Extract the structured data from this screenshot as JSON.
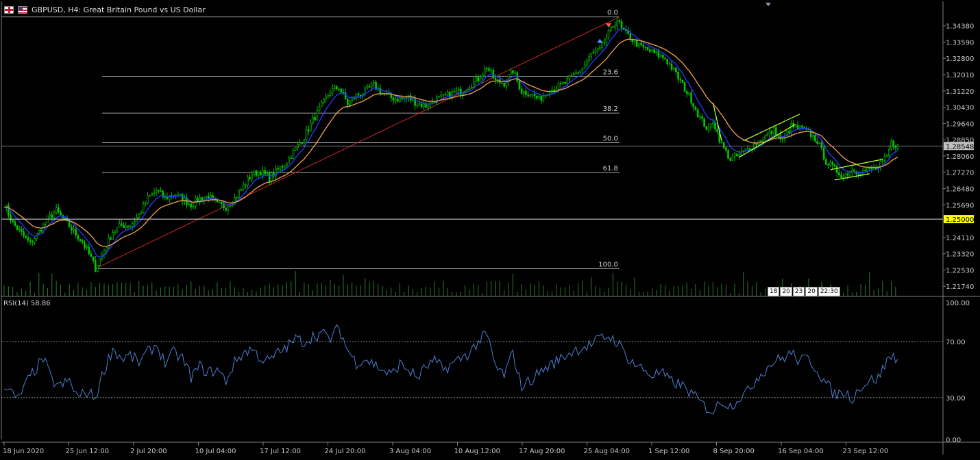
{
  "header": {
    "symbol": "GBPUSD",
    "timeframe": "H4",
    "description": "Great Britain Pound vs US Dollar",
    "title_text": "GBPUSD, H4:  Great Britain Pound vs US Dollar"
  },
  "colors": {
    "background": "#000000",
    "bull_candle": "#00c800",
    "bear_candle": "#00c800",
    "ma_fast": "#1e3cff",
    "ma_slow": "#e69a50",
    "fib_line": "#c0c0c0",
    "trend_line": "#c82828",
    "channel_line": "#adff2f",
    "rsi_line": "#4f7fd0",
    "volume": "#2e7d32",
    "price_highlight_bg": "#ffff00",
    "current_price_bg": "#c0c0c0"
  },
  "icons": {
    "gb_flag": "gb-flag-icon",
    "us_flag": "us-flag-icon",
    "sell_arrow": "sell-arrow-icon",
    "buy_arrow": "buy-arrow-icon"
  },
  "chart_data": {
    "type": "candlestick",
    "symbol": "GBPUSD",
    "timeframe": "H4",
    "price_axis_ticks": [
      "1.34380",
      "1.33590",
      "1.32800",
      "1.32010",
      "1.31220",
      "1.30430",
      "1.29640",
      "1.28850",
      "1.28060",
      "1.27270",
      "1.26480",
      "1.25690",
      "1.24110",
      "1.23320",
      "1.22530",
      "1.21740"
    ],
    "price_ylim": [
      1.2125,
      1.351
    ],
    "current_price": 1.28548,
    "current_price_label": "1.28548",
    "horizontal_level": 1.25,
    "horizontal_level_label": "1.25000",
    "time_ticks": [
      "18 Jun 2020",
      "25 Jun 12:00",
      "2 Jul 20:00",
      "10 Jul 04:00",
      "17 Jul 12:00",
      "24 Jul 20:00",
      "3 Aug 04:00",
      "10 Aug 12:00",
      "17 Aug 20:00",
      "25 Aug 04:00",
      "1 Sep 12:00",
      "8 Sep 20:00",
      "16 Sep 04:00",
      "23 Sep 12:00"
    ],
    "fibonacci": {
      "low": 1.226,
      "high": 1.3481,
      "levels": [
        {
          "label": "0.0",
          "ratio": 0.0
        },
        {
          "label": "23.6",
          "ratio": 0.236
        },
        {
          "label": "38.2",
          "ratio": 0.382
        },
        {
          "label": "50.0",
          "ratio": 0.5
        },
        {
          "label": "61.8",
          "ratio": 0.618
        },
        {
          "label": "100.0",
          "ratio": 1.0
        }
      ]
    },
    "price_path": [
      [
        0,
        1.2575
      ],
      [
        4,
        1.248
      ],
      [
        8,
        1.243
      ],
      [
        12,
        1.238
      ],
      [
        16,
        1.244
      ],
      [
        20,
        1.25
      ],
      [
        24,
        1.254
      ],
      [
        28,
        1.249
      ],
      [
        32,
        1.244
      ],
      [
        36,
        1.239
      ],
      [
        40,
        1.231
      ],
      [
        42,
        1.2262
      ],
      [
        46,
        1.235
      ],
      [
        50,
        1.244
      ],
      [
        54,
        1.247
      ],
      [
        58,
        1.247
      ],
      [
        62,
        1.252
      ],
      [
        66,
        1.26
      ],
      [
        70,
        1.264
      ],
      [
        74,
        1.26
      ],
      [
        78,
        1.262
      ],
      [
        82,
        1.26
      ],
      [
        86,
        1.257
      ],
      [
        90,
        1.26
      ],
      [
        94,
        1.261
      ],
      [
        98,
        1.257
      ],
      [
        102,
        1.256
      ],
      [
        106,
        1.26
      ],
      [
        110,
        1.266
      ],
      [
        114,
        1.272
      ],
      [
        118,
        1.273
      ],
      [
        122,
        1.27
      ],
      [
        126,
        1.274
      ],
      [
        130,
        1.278
      ],
      [
        134,
        1.284
      ],
      [
        138,
        1.29
      ],
      [
        142,
        1.298
      ],
      [
        146,
        1.305
      ],
      [
        150,
        1.312
      ],
      [
        154,
        1.314
      ],
      [
        158,
        1.306
      ],
      [
        162,
        1.31
      ],
      [
        166,
        1.312
      ],
      [
        170,
        1.315
      ],
      [
        174,
        1.311
      ],
      [
        178,
        1.309
      ],
      [
        182,
        1.308
      ],
      [
        186,
        1.309
      ],
      [
        190,
        1.306
      ],
      [
        194,
        1.305
      ],
      [
        198,
        1.308
      ],
      [
        202,
        1.309
      ],
      [
        206,
        1.311
      ],
      [
        210,
        1.312
      ],
      [
        214,
        1.315
      ],
      [
        218,
        1.318
      ],
      [
        222,
        1.324
      ],
      [
        226,
        1.317
      ],
      [
        230,
        1.316
      ],
      [
        234,
        1.322
      ],
      [
        238,
        1.312
      ],
      [
        242,
        1.311
      ],
      [
        246,
        1.308
      ],
      [
        250,
        1.312
      ],
      [
        254,
        1.314
      ],
      [
        258,
        1.316
      ],
      [
        262,
        1.32
      ],
      [
        266,
        1.323
      ],
      [
        270,
        1.33
      ],
      [
        274,
        1.332
      ],
      [
        278,
        1.34
      ],
      [
        282,
        1.347
      ],
      [
        284,
        1.342
      ],
      [
        288,
        1.338
      ],
      [
        292,
        1.334
      ],
      [
        296,
        1.332
      ],
      [
        300,
        1.33
      ],
      [
        304,
        1.328
      ],
      [
        308,
        1.322
      ],
      [
        312,
        1.315
      ],
      [
        316,
        1.308
      ],
      [
        320,
        1.299
      ],
      [
        324,
        1.293
      ],
      [
        326,
        1.298
      ],
      [
        330,
        1.286
      ],
      [
        334,
        1.279
      ],
      [
        338,
        1.281
      ],
      [
        342,
        1.284
      ],
      [
        346,
        1.287
      ],
      [
        350,
        1.29
      ],
      [
        354,
        1.293
      ],
      [
        358,
        1.288
      ],
      [
        362,
        1.295
      ],
      [
        366,
        1.294
      ],
      [
        370,
        1.292
      ],
      [
        374,
        1.288
      ],
      [
        378,
        1.278
      ],
      [
        382,
        1.274
      ],
      [
        386,
        1.271
      ],
      [
        390,
        1.274
      ],
      [
        394,
        1.273
      ],
      [
        398,
        1.274
      ],
      [
        402,
        1.275
      ],
      [
        406,
        1.28
      ],
      [
        408,
        1.287
      ],
      [
        411,
        1.2855
      ]
    ],
    "rsi": {
      "label": "RSI(14) 58.86",
      "period": 14,
      "value": 58.86,
      "axis_ticks": [
        "100.00",
        "70.00",
        "30.00",
        "0.00"
      ],
      "ylim": [
        0,
        100
      ],
      "levels": [
        70,
        30
      ],
      "series": [
        [
          0,
          40
        ],
        [
          6,
          28
        ],
        [
          12,
          45
        ],
        [
          18,
          58
        ],
        [
          22,
          42
        ],
        [
          26,
          38
        ],
        [
          30,
          42
        ],
        [
          34,
          30
        ],
        [
          38,
          34
        ],
        [
          42,
          30
        ],
        [
          46,
          50
        ],
        [
          50,
          65
        ],
        [
          54,
          58
        ],
        [
          58,
          60
        ],
        [
          62,
          55
        ],
        [
          66,
          62
        ],
        [
          70,
          68
        ],
        [
          74,
          55
        ],
        [
          78,
          62
        ],
        [
          82,
          58
        ],
        [
          86,
          45
        ],
        [
          90,
          52
        ],
        [
          94,
          48
        ],
        [
          98,
          50
        ],
        [
          102,
          42
        ],
        [
          106,
          55
        ],
        [
          110,
          62
        ],
        [
          114,
          65
        ],
        [
          118,
          58
        ],
        [
          122,
          56
        ],
        [
          126,
          62
        ],
        [
          130,
          66
        ],
        [
          134,
          72
        ],
        [
          138,
          70
        ],
        [
          142,
          74
        ],
        [
          146,
          76
        ],
        [
          150,
          72
        ],
        [
          154,
          80
        ],
        [
          158,
          64
        ],
        [
          162,
          55
        ],
        [
          166,
          58
        ],
        [
          170,
          54
        ],
        [
          174,
          50
        ],
        [
          178,
          46
        ],
        [
          182,
          54
        ],
        [
          186,
          50
        ],
        [
          190,
          44
        ],
        [
          194,
          52
        ],
        [
          198,
          56
        ],
        [
          202,
          50
        ],
        [
          206,
          54
        ],
        [
          210,
          58
        ],
        [
          214,
          62
        ],
        [
          218,
          70
        ],
        [
          222,
          75
        ],
        [
          226,
          52
        ],
        [
          230,
          46
        ],
        [
          234,
          62
        ],
        [
          238,
          38
        ],
        [
          242,
          42
        ],
        [
          246,
          48
        ],
        [
          250,
          52
        ],
        [
          254,
          56
        ],
        [
          258,
          60
        ],
        [
          262,
          64
        ],
        [
          266,
          66
        ],
        [
          270,
          68
        ],
        [
          274,
          72
        ],
        [
          278,
          74
        ],
        [
          282,
          70
        ],
        [
          286,
          60
        ],
        [
          290,
          54
        ],
        [
          294,
          50
        ],
        [
          298,
          46
        ],
        [
          302,
          48
        ],
        [
          306,
          42
        ],
        [
          310,
          40
        ],
        [
          314,
          36
        ],
        [
          318,
          30
        ],
        [
          322,
          24
        ],
        [
          326,
          20
        ],
        [
          330,
          28
        ],
        [
          334,
          24
        ],
        [
          338,
          30
        ],
        [
          342,
          34
        ],
        [
          346,
          44
        ],
        [
          350,
          50
        ],
        [
          354,
          56
        ],
        [
          358,
          58
        ],
        [
          362,
          62
        ],
        [
          366,
          56
        ],
        [
          370,
          58
        ],
        [
          374,
          50
        ],
        [
          378,
          40
        ],
        [
          382,
          32
        ],
        [
          386,
          34
        ],
        [
          390,
          30
        ],
        [
          394,
          38
        ],
        [
          398,
          42
        ],
        [
          402,
          44
        ],
        [
          406,
          56
        ],
        [
          408,
          60
        ],
        [
          411,
          59
        ]
      ]
    },
    "annotations": {
      "tooltip_dates": [
        "18",
        "20",
        "23",
        "20",
        "22:30"
      ]
    },
    "legend": "none",
    "grid": false
  }
}
